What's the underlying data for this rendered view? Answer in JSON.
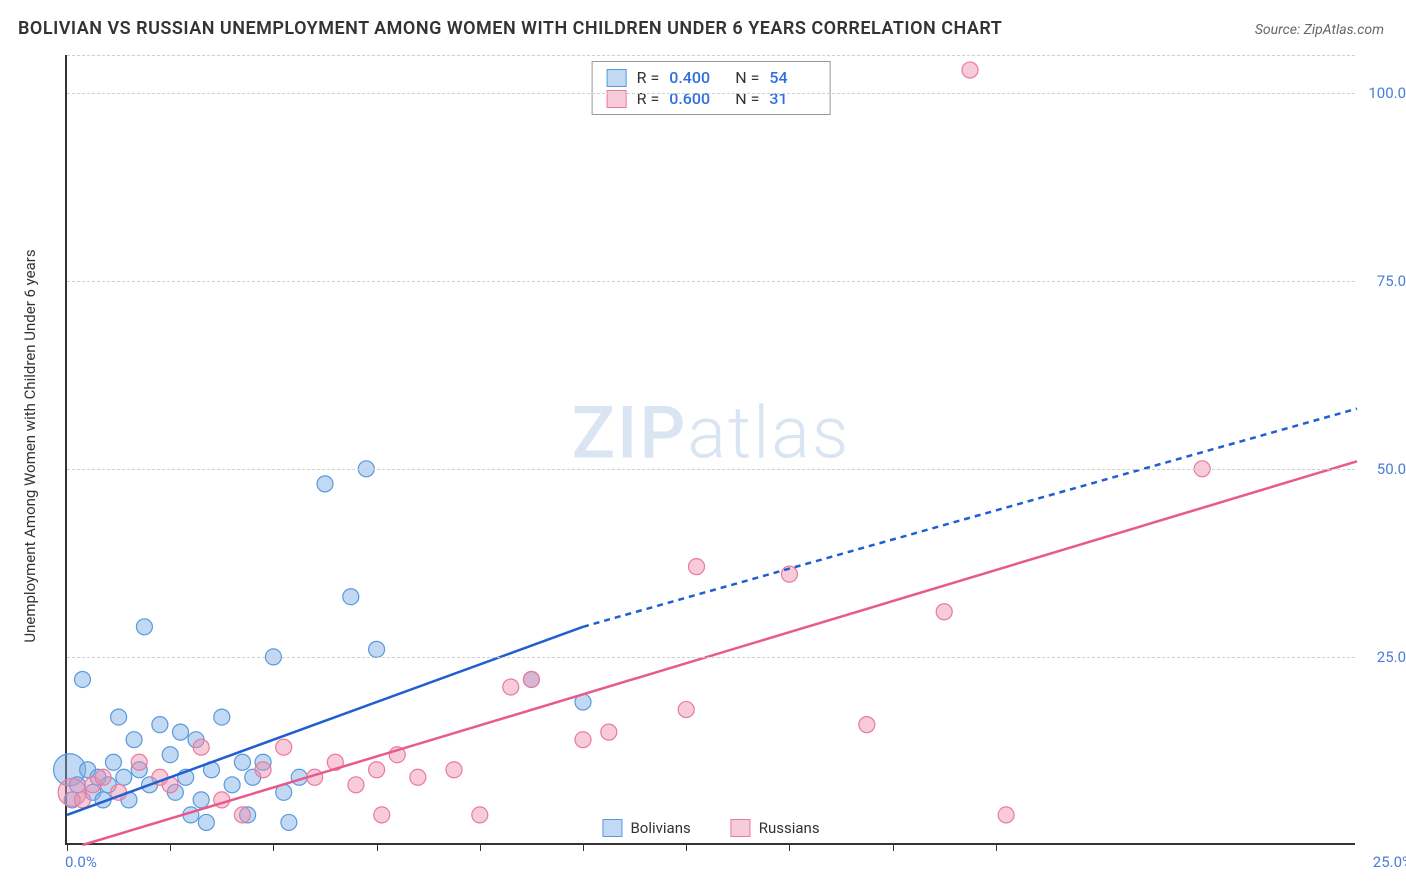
{
  "title": "BOLIVIAN VS RUSSIAN UNEMPLOYMENT AMONG WOMEN WITH CHILDREN UNDER 6 YEARS CORRELATION CHART",
  "source": "Source: ZipAtlas.com",
  "ylabel": "Unemployment Among Women with Children Under 6 years",
  "watermark_a": "ZIP",
  "watermark_b": "atlas",
  "chart": {
    "type": "scatter",
    "xlim": [
      0,
      25
    ],
    "ylim": [
      0,
      105
    ],
    "xticks": [
      0,
      2,
      4,
      6,
      8,
      10,
      12,
      14,
      16,
      18
    ],
    "ygrid": [
      25,
      50,
      75,
      100,
      105
    ],
    "ytick_labels": {
      "25": "25.0%",
      "50": "50.0%",
      "75": "75.0%",
      "100": "100.0%"
    },
    "xlabel_min": "0.0%",
    "xlabel_max": "25.0%",
    "tick_label_color": "#4a7dd8",
    "grid_color": "#d0d0d0",
    "axis_color": "#333333",
    "background_color": "#ffffff",
    "point_radius": 8,
    "series": [
      {
        "name": "Bolivians",
        "label": "Bolivians",
        "fill": "rgba(120,170,230,0.45)",
        "stroke": "#5a99dd",
        "R": "0.400",
        "N": "54",
        "trend": {
          "color": "#1f5fcf",
          "width": 2.5,
          "x1": 0,
          "y1": 4,
          "x2": 10,
          "y2": 29,
          "ext_x2": 25,
          "ext_y2": 58,
          "dash": "6 5"
        },
        "points": [
          [
            0.1,
            6
          ],
          [
            0.2,
            8
          ],
          [
            0.3,
            22
          ],
          [
            0.4,
            10
          ],
          [
            0.5,
            7
          ],
          [
            0.6,
            9
          ],
          [
            0.7,
            6
          ],
          [
            0.8,
            8
          ],
          [
            0.9,
            11
          ],
          [
            1.0,
            17
          ],
          [
            1.1,
            9
          ],
          [
            1.2,
            6
          ],
          [
            1.3,
            14
          ],
          [
            1.4,
            10
          ],
          [
            1.5,
            29
          ],
          [
            1.6,
            8
          ],
          [
            1.8,
            16
          ],
          [
            2.0,
            12
          ],
          [
            2.1,
            7
          ],
          [
            2.2,
            15
          ],
          [
            2.3,
            9
          ],
          [
            2.4,
            4
          ],
          [
            2.5,
            14
          ],
          [
            2.6,
            6
          ],
          [
            2.7,
            3
          ],
          [
            2.8,
            10
          ],
          [
            3.0,
            17
          ],
          [
            3.2,
            8
          ],
          [
            3.4,
            11
          ],
          [
            3.5,
            4
          ],
          [
            3.6,
            9
          ],
          [
            3.8,
            11
          ],
          [
            4.0,
            25
          ],
          [
            4.2,
            7
          ],
          [
            4.3,
            3
          ],
          [
            4.5,
            9
          ],
          [
            5.0,
            48
          ],
          [
            5.5,
            33
          ],
          [
            5.8,
            50
          ],
          [
            6.0,
            26
          ],
          [
            9.0,
            22
          ],
          [
            10.0,
            19
          ]
        ],
        "large_points": [
          [
            0.05,
            10,
            16
          ]
        ]
      },
      {
        "name": "Russians",
        "label": "Russians",
        "fill": "rgba(240,140,170,0.45)",
        "stroke": "#e87aa0",
        "R": "0.600",
        "N": "31",
        "trend": {
          "color": "#e85a8f",
          "width": 2.5,
          "x1": 0.3,
          "y1": 0,
          "x2": 25,
          "y2": 51
        },
        "points": [
          [
            0.3,
            6
          ],
          [
            0.5,
            8
          ],
          [
            0.7,
            9
          ],
          [
            1.0,
            7
          ],
          [
            1.4,
            11
          ],
          [
            1.8,
            9
          ],
          [
            2.0,
            8
          ],
          [
            2.6,
            13
          ],
          [
            3.0,
            6
          ],
          [
            3.4,
            4
          ],
          [
            3.8,
            10
          ],
          [
            4.2,
            13
          ],
          [
            4.8,
            9
          ],
          [
            5.2,
            11
          ],
          [
            5.6,
            8
          ],
          [
            6.0,
            10
          ],
          [
            6.1,
            4
          ],
          [
            6.4,
            12
          ],
          [
            6.8,
            9
          ],
          [
            7.5,
            10
          ],
          [
            8.0,
            4
          ],
          [
            8.6,
            21
          ],
          [
            9.0,
            22
          ],
          [
            10.0,
            14
          ],
          [
            10.5,
            15
          ],
          [
            12.0,
            18
          ],
          [
            12.2,
            37
          ],
          [
            14.0,
            36
          ],
          [
            15.5,
            16
          ],
          [
            17.0,
            31
          ],
          [
            17.5,
            103
          ],
          [
            18.2,
            4
          ],
          [
            22.0,
            50
          ]
        ],
        "large_points": [
          [
            0.1,
            7,
            14
          ]
        ]
      }
    ]
  }
}
